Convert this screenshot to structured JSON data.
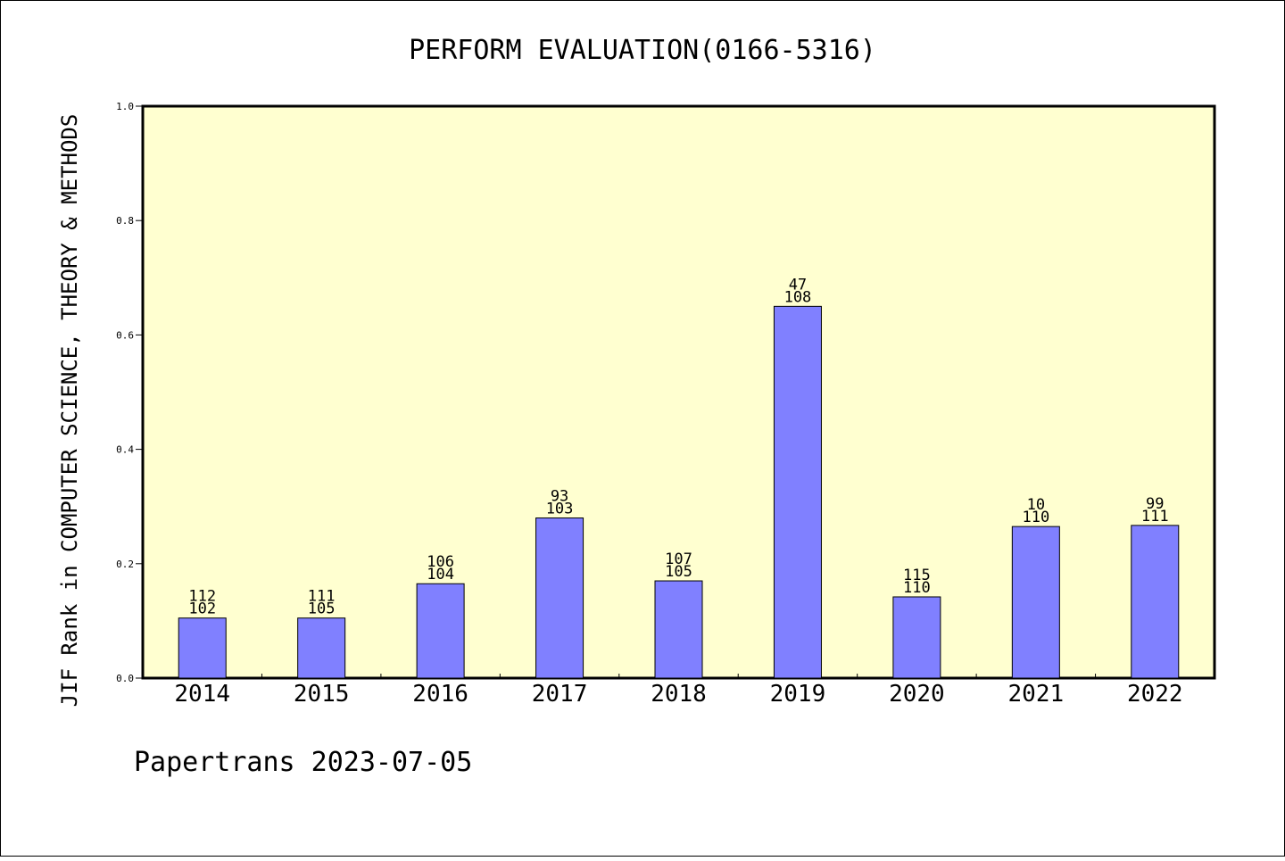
{
  "chart_data": {
    "type": "bar",
    "title": "PERFORM EVALUATION(0166-5316)",
    "ylabel": "JIF Rank in COMPUTER SCIENCE, THEORY & METHODS",
    "xlabel": "",
    "footer": "Papertrans 2023-07-05",
    "ylim": [
      0,
      1.0
    ],
    "yticks": [
      "0.0",
      "0.2",
      "0.4",
      "0.6",
      "0.8",
      "1.0"
    ],
    "categories": [
      "2014",
      "2015",
      "2016",
      "2017",
      "2018",
      "2019",
      "2020",
      "2021",
      "2022"
    ],
    "values": [
      0.105,
      0.105,
      0.165,
      0.28,
      0.17,
      0.65,
      0.142,
      0.265,
      0.267
    ],
    "labels_top": [
      "112",
      "111",
      "106",
      "93",
      "107",
      "47",
      "115",
      "10",
      "99"
    ],
    "labels_bottom": [
      "102",
      "105",
      "104",
      "103",
      "105",
      "108",
      "110",
      "110",
      "111"
    ],
    "grid": false,
    "colors": {
      "bar": "#8080ff",
      "plot_bg": "#ffffd0",
      "axis": "#000000"
    }
  }
}
